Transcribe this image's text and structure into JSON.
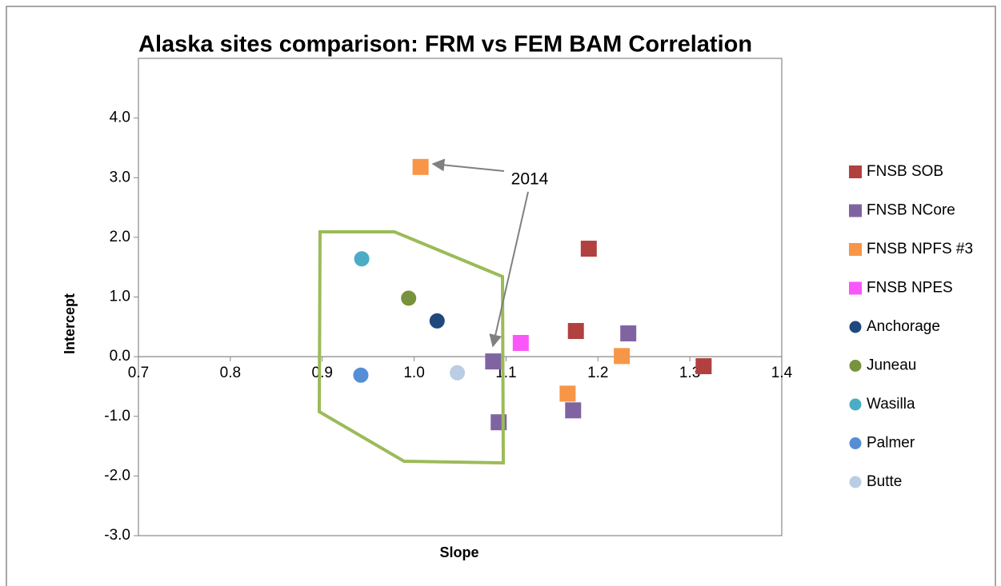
{
  "chart_data": {
    "type": "scatter",
    "title": "Alaska sites comparison:  FRM vs FEM BAM  Correlation",
    "xlabel": "Slope",
    "ylabel": "Intercept",
    "annotation": "2014",
    "xlim": [
      0.7,
      1.4
    ],
    "xticks": [
      0.7,
      0.8,
      0.9,
      {
        "value": 1,
        "label": "1.0"
      },
      1.1,
      1.2,
      1.3,
      1.4
    ],
    "ylim": [
      -3,
      5
    ],
    "yticks": [
      {
        "value": -3,
        "label": "-3.0"
      },
      {
        "value": -2,
        "label": "-2.0"
      },
      {
        "value": -1,
        "label": "-1.0"
      },
      {
        "value": 0,
        "label": "0.0"
      },
      {
        "value": 1,
        "label": "1.0"
      },
      {
        "value": 2,
        "label": "2.0"
      },
      {
        "value": 3,
        "label": "3.0"
      },
      {
        "value": 4,
        "label": "4.0"
      }
    ],
    "series": [
      {
        "name": "FNSB SOB",
        "color": "#b0413e",
        "marker": "square",
        "x": [
          1.19,
          1.176,
          1.315
        ],
        "values": [
          1.81,
          0.43,
          -0.16
        ]
      },
      {
        "name": "FNSB NCore",
        "color": "#8064a2",
        "marker": "square",
        "x": [
          1.086,
          1.233,
          1.173,
          1.092
        ],
        "values": [
          -0.08,
          0.39,
          -0.9,
          -1.1
        ]
      },
      {
        "name": "FNSB NPFS #3",
        "color": "#f79646",
        "marker": "square",
        "x": [
          1.007,
          1.226,
          1.167
        ],
        "values": [
          3.18,
          0.01,
          -0.62
        ]
      },
      {
        "name": "FNSB NPES",
        "color": "#f957f9",
        "marker": "square",
        "x": [
          1.116
        ],
        "values": [
          0.23
        ]
      },
      {
        "name": "Anchorage",
        "color": "#1f497d",
        "marker": "circle",
        "x": [
          1.025
        ],
        "values": [
          0.6
        ]
      },
      {
        "name": "Juneau",
        "color": "#77933c",
        "marker": "circle",
        "x": [
          0.994
        ],
        "values": [
          0.98
        ]
      },
      {
        "name": "Wasilla",
        "color": "#4bacc6",
        "marker": "circle",
        "x": [
          0.943
        ],
        "values": [
          1.64
        ]
      },
      {
        "name": "Palmer",
        "color": "#558ed5",
        "marker": "circle",
        "x": [
          0.942
        ],
        "values": [
          -0.31
        ]
      },
      {
        "name": "Butte",
        "color": "#b9cde5",
        "marker": "circle",
        "x": [
          1.047
        ],
        "values": [
          -0.27
        ]
      }
    ]
  }
}
